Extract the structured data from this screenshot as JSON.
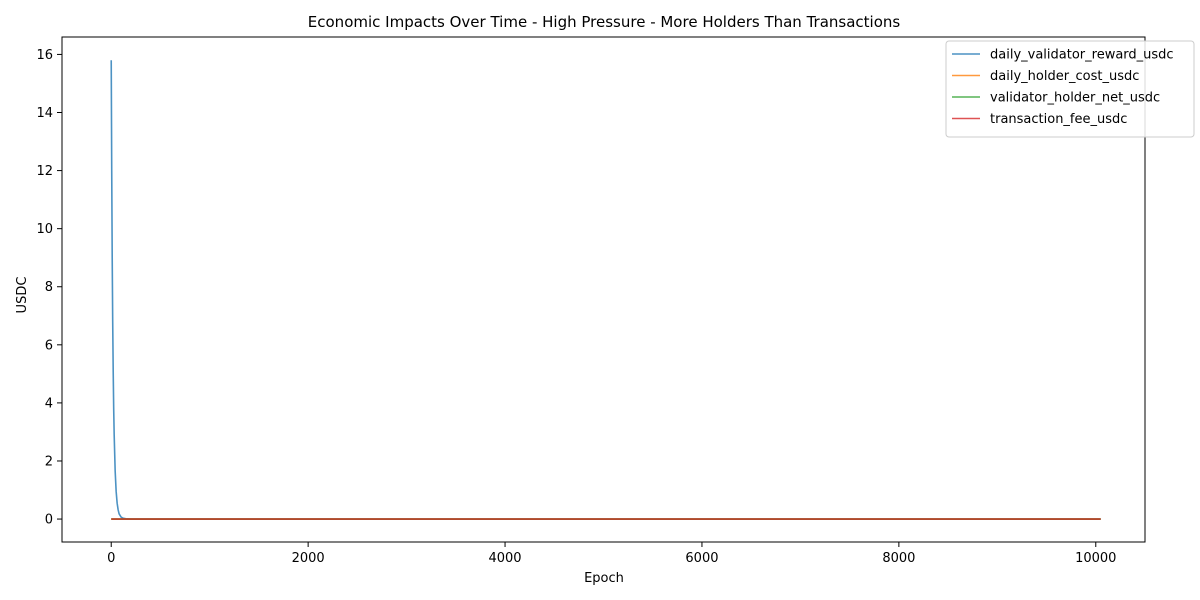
{
  "chart_data": {
    "type": "line",
    "title": "Economic Impacts Over Time - High Pressure - More Holders Than Transactions",
    "xlabel": "Epoch",
    "ylabel": "USDC",
    "xlim": [
      -500,
      10500
    ],
    "ylim": [
      -0.79,
      16.6
    ],
    "xticks": [
      0,
      2000,
      4000,
      6000,
      8000,
      10000
    ],
    "yticks": [
      0,
      2,
      4,
      6,
      8,
      10,
      12,
      14,
      16
    ],
    "grid": false,
    "legend_position": "top-right",
    "series": [
      {
        "name": "daily_validator_reward_usdc",
        "color": "#1f77b4",
        "x": [
          0,
          5,
          10,
          15,
          20,
          25,
          30,
          40,
          50,
          60,
          70,
          80,
          100,
          120,
          150,
          200,
          500,
          1000,
          5000,
          10050
        ],
        "y": [
          15.8,
          12.0,
          9.0,
          6.8,
          5.1,
          3.8,
          2.9,
          1.65,
          0.95,
          0.55,
          0.32,
          0.18,
          0.07,
          0.03,
          0.01,
          0.0,
          0.0,
          0.0,
          0.0,
          0.0
        ]
      },
      {
        "name": "daily_holder_cost_usdc",
        "color": "#ff7f0e",
        "x": [
          0,
          10050
        ],
        "y": [
          0.0,
          0.0
        ]
      },
      {
        "name": "validator_holder_net_usdc",
        "color": "#2ca02c",
        "x": [
          0,
          10050
        ],
        "y": [
          0.0,
          0.0
        ]
      },
      {
        "name": "transaction_fee_usdc",
        "color": "#d62728",
        "x": [
          0,
          10050
        ],
        "y": [
          0.0,
          0.0
        ]
      }
    ]
  }
}
